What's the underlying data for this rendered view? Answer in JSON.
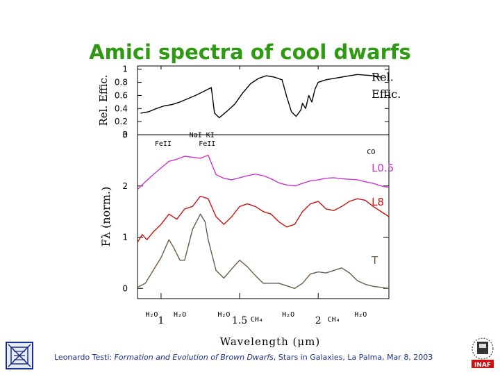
{
  "slide": {
    "title": "Amici spectra of cool dwarfs"
  },
  "footer": {
    "author": "Leonardo Testi",
    "sep": ": ",
    "talk": "Formation and Evolution of Brown Dwarfs",
    "venue": ", Stars in Galaxies, La Palma, Mar 8, 2003"
  },
  "logos": {
    "right_text": "INAF"
  },
  "chart_data": [
    {
      "type": "line",
      "panel": "top",
      "ylabel": "Rel. Effic.",
      "yticks": [
        "0",
        "0.2",
        "0.4",
        "0.6",
        "0.8",
        "1"
      ],
      "ylim": [
        0,
        1.05
      ],
      "xlim": [
        0.85,
        2.45
      ],
      "series": [
        {
          "name": "Rel. Effic.",
          "color": "#000000",
          "x": [
            0.87,
            0.92,
            0.97,
            1.02,
            1.07,
            1.12,
            1.17,
            1.22,
            1.27,
            1.32,
            1.34,
            1.37,
            1.42,
            1.47,
            1.52,
            1.57,
            1.62,
            1.67,
            1.72,
            1.77,
            1.8,
            1.83,
            1.86,
            1.89,
            1.9,
            1.92,
            1.94,
            1.96,
            1.98,
            2.0,
            2.05,
            2.1,
            2.15,
            2.2,
            2.25,
            2.3,
            2.35,
            2.4
          ],
          "y": [
            0.33,
            0.35,
            0.4,
            0.44,
            0.46,
            0.5,
            0.55,
            0.6,
            0.66,
            0.72,
            0.33,
            0.26,
            0.36,
            0.47,
            0.64,
            0.78,
            0.86,
            0.9,
            0.88,
            0.84,
            0.58,
            0.35,
            0.28,
            0.38,
            0.48,
            0.4,
            0.6,
            0.5,
            0.7,
            0.8,
            0.84,
            0.86,
            0.88,
            0.9,
            0.92,
            0.91,
            0.9,
            0.88
          ]
        }
      ],
      "annotations": [
        {
          "text": "Rel.",
          "x": 2.34,
          "y": 0.82
        },
        {
          "text": "Effic.",
          "x": 2.34,
          "y": 0.56
        }
      ]
    },
    {
      "type": "line",
      "panel": "bottom",
      "ylabel": "Fλ (norm.)",
      "xlabel": "Wavelength (μm)",
      "yticks": [
        "0",
        "1",
        "2",
        "3"
      ],
      "xticks": [
        "1",
        "1.5",
        "2"
      ],
      "ylim": [
        -0.2,
        3.0
      ],
      "xlim": [
        0.85,
        2.45
      ],
      "series": [
        {
          "name": "L0.5",
          "color": "#cc33cc",
          "x": [
            0.85,
            0.9,
            0.95,
            1.0,
            1.05,
            1.1,
            1.15,
            1.2,
            1.25,
            1.3,
            1.35,
            1.4,
            1.45,
            1.5,
            1.55,
            1.6,
            1.65,
            1.7,
            1.75,
            1.8,
            1.85,
            1.9,
            1.95,
            2.0,
            2.05,
            2.1,
            2.15,
            2.2,
            2.25,
            2.3,
            2.35,
            2.4,
            2.45
          ],
          "y": [
            1.93,
            2.08,
            2.22,
            2.35,
            2.48,
            2.52,
            2.58,
            2.56,
            2.54,
            2.6,
            2.22,
            2.15,
            2.12,
            2.16,
            2.2,
            2.23,
            2.2,
            2.14,
            2.06,
            2.02,
            2.0,
            2.05,
            2.1,
            2.12,
            2.15,
            2.16,
            2.14,
            2.13,
            2.12,
            2.08,
            2.05,
            2.0,
            1.97
          ]
        },
        {
          "name": "L8",
          "color": "#cc1111",
          "x": [
            0.85,
            0.88,
            0.91,
            0.95,
            1.0,
            1.05,
            1.1,
            1.15,
            1.2,
            1.25,
            1.3,
            1.35,
            1.4,
            1.45,
            1.5,
            1.55,
            1.6,
            1.65,
            1.7,
            1.75,
            1.8,
            1.85,
            1.9,
            1.95,
            2.0,
            2.05,
            2.1,
            2.15,
            2.2,
            2.25,
            2.3,
            2.35,
            2.4,
            2.45
          ],
          "y": [
            0.9,
            1.05,
            0.95,
            1.1,
            1.25,
            1.45,
            1.35,
            1.55,
            1.6,
            1.8,
            1.75,
            1.4,
            1.25,
            1.4,
            1.6,
            1.65,
            1.6,
            1.5,
            1.45,
            1.3,
            1.2,
            1.25,
            1.5,
            1.65,
            1.7,
            1.55,
            1.52,
            1.6,
            1.7,
            1.75,
            1.72,
            1.6,
            1.5,
            1.4
          ]
        },
        {
          "name": "T",
          "color": "#6b5a48",
          "x": [
            0.85,
            0.9,
            0.95,
            1.0,
            1.05,
            1.08,
            1.12,
            1.15,
            1.2,
            1.25,
            1.28,
            1.3,
            1.35,
            1.4,
            1.45,
            1.5,
            1.55,
            1.6,
            1.65,
            1.7,
            1.75,
            1.8,
            1.85,
            1.9,
            1.95,
            2.0,
            2.05,
            2.1,
            2.15,
            2.2,
            2.25,
            2.3,
            2.35,
            2.4,
            2.45
          ],
          "y": [
            0.02,
            0.1,
            0.35,
            0.6,
            0.95,
            0.8,
            0.55,
            0.55,
            1.15,
            1.45,
            1.3,
            0.95,
            0.35,
            0.2,
            0.38,
            0.55,
            0.42,
            0.25,
            0.1,
            0.1,
            0.1,
            0.05,
            0.0,
            0.1,
            0.28,
            0.32,
            0.3,
            0.35,
            0.4,
            0.3,
            0.15,
            0.08,
            0.04,
            0.02,
            0.0
          ]
        }
      ],
      "annotations": [
        {
          "text": "FeII",
          "x": 0.96,
          "y": 2.78
        },
        {
          "text": "NaI KI",
          "x": 1.18,
          "y": 2.95
        },
        {
          "text": "FeII",
          "x": 1.24,
          "y": 2.78
        },
        {
          "text": "CO",
          "x": 2.31,
          "y": 2.62
        },
        {
          "text": "L0.5",
          "x": 2.34,
          "y": 2.28
        },
        {
          "text": "L8",
          "x": 2.34,
          "y": 1.62
        },
        {
          "text": "T",
          "x": 2.34,
          "y": 0.48
        },
        {
          "text": "H₂O",
          "x": 0.9,
          "y": -0.55
        },
        {
          "text": "H₂O",
          "x": 1.08,
          "y": -0.55
        },
        {
          "text": "H₂O",
          "x": 1.36,
          "y": -0.55
        },
        {
          "text": "CH₄",
          "x": 1.57,
          "y": -0.65
        },
        {
          "text": "H₂O",
          "x": 1.77,
          "y": -0.55
        },
        {
          "text": "CH₄",
          "x": 2.06,
          "y": -0.65
        },
        {
          "text": "H₂O",
          "x": 2.23,
          "y": -0.55
        }
      ]
    }
  ]
}
